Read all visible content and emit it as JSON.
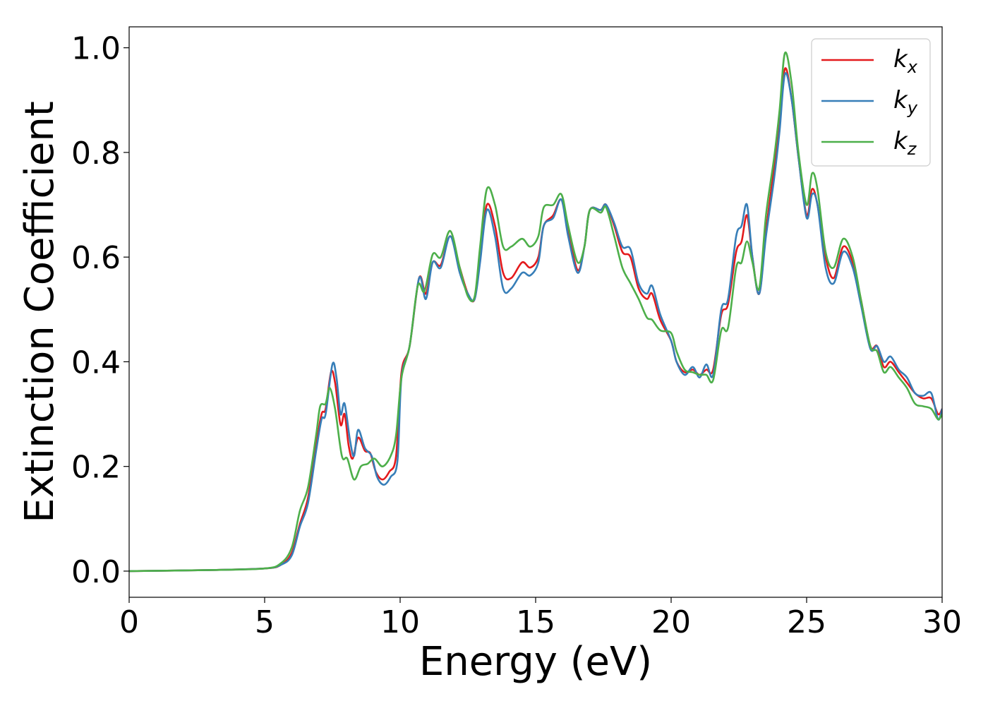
{
  "chart_data": {
    "type": "line",
    "title": "",
    "xlabel": "Energy (eV)",
    "ylabel": "Extinction Coefficient",
    "xlim": [
      0,
      30
    ],
    "ylim": [
      -0.05,
      1.04
    ],
    "xticks": [
      0,
      5,
      10,
      15,
      20,
      25,
      30
    ],
    "xtick_labels": [
      "0",
      "5",
      "10",
      "15",
      "20",
      "25",
      "30"
    ],
    "yticks": [
      0.0,
      0.2,
      0.4,
      0.6,
      0.8,
      1.0
    ],
    "ytick_labels": [
      "0.0",
      "0.2",
      "0.4",
      "0.6",
      "0.8",
      "1.0"
    ],
    "grid": false,
    "legend_position": "top-right",
    "series": [
      {
        "name": "k_x",
        "label_main": "k",
        "label_sub": "x",
        "color": "#e41a1c",
        "points": [
          [
            0,
            0
          ],
          [
            3,
            0.002
          ],
          [
            5,
            0.005
          ],
          [
            5.6,
            0.012
          ],
          [
            6,
            0.035
          ],
          [
            6.3,
            0.09
          ],
          [
            6.6,
            0.14
          ],
          [
            6.9,
            0.24
          ],
          [
            7.1,
            0.3
          ],
          [
            7.25,
            0.31
          ],
          [
            7.45,
            0.38
          ],
          [
            7.6,
            0.36
          ],
          [
            7.8,
            0.28
          ],
          [
            7.95,
            0.3
          ],
          [
            8.1,
            0.24
          ],
          [
            8.25,
            0.215
          ],
          [
            8.45,
            0.255
          ],
          [
            8.7,
            0.23
          ],
          [
            8.9,
            0.225
          ],
          [
            9.1,
            0.19
          ],
          [
            9.35,
            0.175
          ],
          [
            9.6,
            0.19
          ],
          [
            9.85,
            0.22
          ],
          [
            10.05,
            0.38
          ],
          [
            10.35,
            0.43
          ],
          [
            10.7,
            0.56
          ],
          [
            10.95,
            0.53
          ],
          [
            11.2,
            0.59
          ],
          [
            11.5,
            0.585
          ],
          [
            11.85,
            0.64
          ],
          [
            12.2,
            0.58
          ],
          [
            12.5,
            0.53
          ],
          [
            12.75,
            0.52
          ],
          [
            12.95,
            0.6
          ],
          [
            13.2,
            0.7
          ],
          [
            13.5,
            0.66
          ],
          [
            13.8,
            0.57
          ],
          [
            14.1,
            0.56
          ],
          [
            14.5,
            0.59
          ],
          [
            14.8,
            0.58
          ],
          [
            15.1,
            0.6
          ],
          [
            15.3,
            0.66
          ],
          [
            15.65,
            0.68
          ],
          [
            15.95,
            0.71
          ],
          [
            16.2,
            0.65
          ],
          [
            16.55,
            0.575
          ],
          [
            16.8,
            0.62
          ],
          [
            17.0,
            0.69
          ],
          [
            17.4,
            0.69
          ],
          [
            17.6,
            0.7
          ],
          [
            17.9,
            0.66
          ],
          [
            18.2,
            0.61
          ],
          [
            18.5,
            0.6
          ],
          [
            18.8,
            0.54
          ],
          [
            19.1,
            0.52
          ],
          [
            19.3,
            0.53
          ],
          [
            19.6,
            0.48
          ],
          [
            20.0,
            0.44
          ],
          [
            20.2,
            0.4
          ],
          [
            20.5,
            0.38
          ],
          [
            20.8,
            0.385
          ],
          [
            21.05,
            0.375
          ],
          [
            21.3,
            0.385
          ],
          [
            21.55,
            0.385
          ],
          [
            21.85,
            0.49
          ],
          [
            22.1,
            0.51
          ],
          [
            22.4,
            0.61
          ],
          [
            22.6,
            0.63
          ],
          [
            22.8,
            0.68
          ],
          [
            23.0,
            0.6
          ],
          [
            23.25,
            0.53
          ],
          [
            23.5,
            0.65
          ],
          [
            23.8,
            0.77
          ],
          [
            24.0,
            0.85
          ],
          [
            24.2,
            0.96
          ],
          [
            24.45,
            0.9
          ],
          [
            24.7,
            0.79
          ],
          [
            25.0,
            0.68
          ],
          [
            25.2,
            0.73
          ],
          [
            25.4,
            0.7
          ],
          [
            25.7,
            0.6
          ],
          [
            26.0,
            0.56
          ],
          [
            26.35,
            0.62
          ],
          [
            26.7,
            0.59
          ],
          [
            27.0,
            0.52
          ],
          [
            27.35,
            0.43
          ],
          [
            27.6,
            0.43
          ],
          [
            27.85,
            0.39
          ],
          [
            28.1,
            0.4
          ],
          [
            28.4,
            0.38
          ],
          [
            28.7,
            0.36
          ],
          [
            29.0,
            0.34
          ],
          [
            29.3,
            0.33
          ],
          [
            29.6,
            0.33
          ],
          [
            29.85,
            0.3
          ],
          [
            30.0,
            0.31
          ]
        ]
      },
      {
        "name": "k_y",
        "label_main": "k",
        "label_sub": "y",
        "color": "#377eb8",
        "points": [
          [
            0,
            0
          ],
          [
            3,
            0.002
          ],
          [
            5,
            0.005
          ],
          [
            5.6,
            0.012
          ],
          [
            6,
            0.03
          ],
          [
            6.3,
            0.085
          ],
          [
            6.6,
            0.13
          ],
          [
            6.9,
            0.23
          ],
          [
            7.1,
            0.29
          ],
          [
            7.25,
            0.3
          ],
          [
            7.5,
            0.395
          ],
          [
            7.65,
            0.37
          ],
          [
            7.8,
            0.3
          ],
          [
            7.95,
            0.32
          ],
          [
            8.15,
            0.25
          ],
          [
            8.3,
            0.22
          ],
          [
            8.45,
            0.27
          ],
          [
            8.7,
            0.235
          ],
          [
            8.95,
            0.22
          ],
          [
            9.15,
            0.18
          ],
          [
            9.4,
            0.165
          ],
          [
            9.65,
            0.18
          ],
          [
            9.9,
            0.21
          ],
          [
            10.05,
            0.37
          ],
          [
            10.35,
            0.43
          ],
          [
            10.7,
            0.56
          ],
          [
            10.95,
            0.52
          ],
          [
            11.2,
            0.59
          ],
          [
            11.5,
            0.58
          ],
          [
            11.85,
            0.64
          ],
          [
            12.2,
            0.57
          ],
          [
            12.5,
            0.53
          ],
          [
            12.75,
            0.52
          ],
          [
            12.95,
            0.59
          ],
          [
            13.2,
            0.69
          ],
          [
            13.5,
            0.64
          ],
          [
            13.8,
            0.54
          ],
          [
            14.1,
            0.54
          ],
          [
            14.5,
            0.57
          ],
          [
            14.8,
            0.565
          ],
          [
            15.1,
            0.59
          ],
          [
            15.3,
            0.66
          ],
          [
            15.65,
            0.675
          ],
          [
            15.95,
            0.71
          ],
          [
            16.2,
            0.64
          ],
          [
            16.55,
            0.57
          ],
          [
            16.8,
            0.62
          ],
          [
            17.0,
            0.69
          ],
          [
            17.4,
            0.69
          ],
          [
            17.6,
            0.7
          ],
          [
            17.9,
            0.665
          ],
          [
            18.2,
            0.62
          ],
          [
            18.5,
            0.615
          ],
          [
            18.8,
            0.55
          ],
          [
            19.1,
            0.53
          ],
          [
            19.3,
            0.545
          ],
          [
            19.6,
            0.49
          ],
          [
            20.0,
            0.44
          ],
          [
            20.2,
            0.4
          ],
          [
            20.5,
            0.375
          ],
          [
            20.8,
            0.39
          ],
          [
            21.05,
            0.37
          ],
          [
            21.3,
            0.395
          ],
          [
            21.55,
            0.375
          ],
          [
            21.85,
            0.5
          ],
          [
            22.1,
            0.52
          ],
          [
            22.4,
            0.64
          ],
          [
            22.6,
            0.66
          ],
          [
            22.8,
            0.7
          ],
          [
            23.0,
            0.6
          ],
          [
            23.25,
            0.53
          ],
          [
            23.5,
            0.64
          ],
          [
            23.8,
            0.75
          ],
          [
            24.0,
            0.84
          ],
          [
            24.2,
            0.95
          ],
          [
            24.45,
            0.9
          ],
          [
            24.7,
            0.79
          ],
          [
            25.0,
            0.675
          ],
          [
            25.2,
            0.72
          ],
          [
            25.4,
            0.7
          ],
          [
            25.7,
            0.58
          ],
          [
            26.0,
            0.55
          ],
          [
            26.35,
            0.61
          ],
          [
            26.7,
            0.58
          ],
          [
            27.0,
            0.51
          ],
          [
            27.35,
            0.425
          ],
          [
            27.6,
            0.43
          ],
          [
            27.85,
            0.4
          ],
          [
            28.1,
            0.41
          ],
          [
            28.4,
            0.385
          ],
          [
            28.7,
            0.37
          ],
          [
            29.0,
            0.34
          ],
          [
            29.3,
            0.335
          ],
          [
            29.6,
            0.34
          ],
          [
            29.85,
            0.29
          ],
          [
            30.0,
            0.31
          ]
        ]
      },
      {
        "name": "k_z",
        "label_main": "k",
        "label_sub": "z",
        "color": "#4daf4a",
        "points": [
          [
            0,
            0
          ],
          [
            3,
            0.002
          ],
          [
            5,
            0.005
          ],
          [
            5.6,
            0.015
          ],
          [
            6,
            0.045
          ],
          [
            6.3,
            0.115
          ],
          [
            6.6,
            0.16
          ],
          [
            6.9,
            0.26
          ],
          [
            7.05,
            0.315
          ],
          [
            7.25,
            0.32
          ],
          [
            7.4,
            0.35
          ],
          [
            7.6,
            0.31
          ],
          [
            7.85,
            0.22
          ],
          [
            8.05,
            0.215
          ],
          [
            8.3,
            0.175
          ],
          [
            8.55,
            0.2
          ],
          [
            8.8,
            0.205
          ],
          [
            9.05,
            0.215
          ],
          [
            9.35,
            0.2
          ],
          [
            9.65,
            0.22
          ],
          [
            9.85,
            0.26
          ],
          [
            10.05,
            0.37
          ],
          [
            10.35,
            0.43
          ],
          [
            10.65,
            0.545
          ],
          [
            10.9,
            0.535
          ],
          [
            11.2,
            0.605
          ],
          [
            11.5,
            0.6
          ],
          [
            11.85,
            0.65
          ],
          [
            12.2,
            0.58
          ],
          [
            12.5,
            0.525
          ],
          [
            12.75,
            0.525
          ],
          [
            12.95,
            0.62
          ],
          [
            13.2,
            0.73
          ],
          [
            13.5,
            0.7
          ],
          [
            13.8,
            0.62
          ],
          [
            14.1,
            0.62
          ],
          [
            14.5,
            0.635
          ],
          [
            14.8,
            0.62
          ],
          [
            15.1,
            0.64
          ],
          [
            15.3,
            0.695
          ],
          [
            15.65,
            0.7
          ],
          [
            15.95,
            0.72
          ],
          [
            16.2,
            0.66
          ],
          [
            16.55,
            0.59
          ],
          [
            16.8,
            0.62
          ],
          [
            17.0,
            0.69
          ],
          [
            17.4,
            0.685
          ],
          [
            17.6,
            0.695
          ],
          [
            17.9,
            0.64
          ],
          [
            18.2,
            0.58
          ],
          [
            18.5,
            0.55
          ],
          [
            18.8,
            0.52
          ],
          [
            19.1,
            0.485
          ],
          [
            19.3,
            0.48
          ],
          [
            19.6,
            0.46
          ],
          [
            20.0,
            0.455
          ],
          [
            20.2,
            0.42
          ],
          [
            20.5,
            0.385
          ],
          [
            20.8,
            0.38
          ],
          [
            21.05,
            0.375
          ],
          [
            21.3,
            0.375
          ],
          [
            21.55,
            0.365
          ],
          [
            21.85,
            0.46
          ],
          [
            22.1,
            0.465
          ],
          [
            22.4,
            0.58
          ],
          [
            22.6,
            0.59
          ],
          [
            22.8,
            0.63
          ],
          [
            23.0,
            0.59
          ],
          [
            23.25,
            0.54
          ],
          [
            23.5,
            0.68
          ],
          [
            23.8,
            0.79
          ],
          [
            24.0,
            0.88
          ],
          [
            24.2,
            0.99
          ],
          [
            24.45,
            0.93
          ],
          [
            24.7,
            0.8
          ],
          [
            25.0,
            0.7
          ],
          [
            25.2,
            0.76
          ],
          [
            25.4,
            0.73
          ],
          [
            25.7,
            0.61
          ],
          [
            26.0,
            0.58
          ],
          [
            26.35,
            0.635
          ],
          [
            26.7,
            0.6
          ],
          [
            27.0,
            0.52
          ],
          [
            27.35,
            0.43
          ],
          [
            27.6,
            0.42
          ],
          [
            27.85,
            0.38
          ],
          [
            28.1,
            0.39
          ],
          [
            28.4,
            0.37
          ],
          [
            28.7,
            0.35
          ],
          [
            29.0,
            0.32
          ],
          [
            29.3,
            0.315
          ],
          [
            29.6,
            0.31
          ],
          [
            29.85,
            0.29
          ],
          [
            30.0,
            0.3
          ]
        ]
      }
    ]
  }
}
